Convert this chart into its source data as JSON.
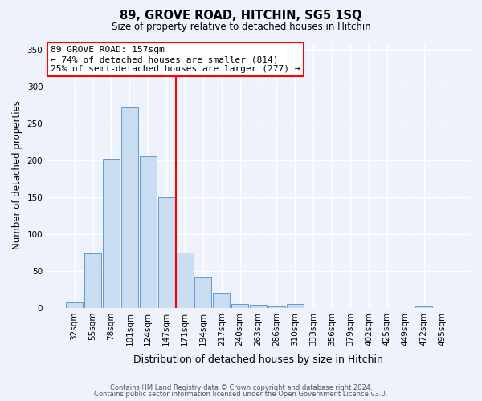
{
  "title1": "89, GROVE ROAD, HITCHIN, SG5 1SQ",
  "title2": "Size of property relative to detached houses in Hitchin",
  "xlabel": "Distribution of detached houses by size in Hitchin",
  "ylabel": "Number of detached properties",
  "bar_labels": [
    "32sqm",
    "55sqm",
    "78sqm",
    "101sqm",
    "124sqm",
    "147sqm",
    "171sqm",
    "194sqm",
    "217sqm",
    "240sqm",
    "263sqm",
    "286sqm",
    "310sqm",
    "333sqm",
    "356sqm",
    "379sqm",
    "402sqm",
    "425sqm",
    "449sqm",
    "472sqm",
    "495sqm"
  ],
  "bar_values": [
    7,
    74,
    202,
    272,
    205,
    150,
    75,
    41,
    20,
    5,
    4,
    2,
    5,
    0,
    0,
    0,
    0,
    0,
    0,
    2,
    0
  ],
  "bar_color": "#c9ddf2",
  "bar_edge_color": "#6699cc",
  "vline_color": "red",
  "annotation_title": "89 GROVE ROAD: 157sqm",
  "annotation_line1": "← 74% of detached houses are smaller (814)",
  "annotation_line2": "25% of semi-detached houses are larger (277) →",
  "annotation_box_color": "white",
  "annotation_box_edge": "red",
  "ylim": [
    0,
    360
  ],
  "yticks": [
    0,
    50,
    100,
    150,
    200,
    250,
    300,
    350
  ],
  "footer1": "Contains HM Land Registry data © Crown copyright and database right 2024.",
  "footer2": "Contains public sector information licensed under the Open Government Licence v3.0.",
  "bg_color": "#eef3fb"
}
